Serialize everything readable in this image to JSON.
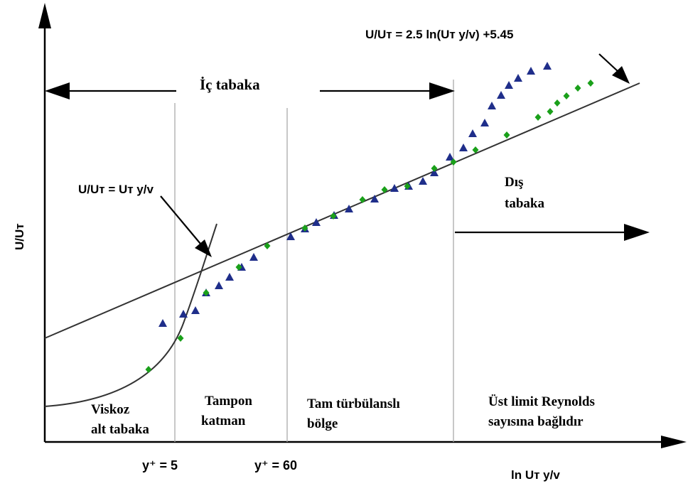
{
  "chart_data": {
    "type": "scatter",
    "title": "",
    "xlabel": "ln Uт y/v",
    "ylabel": "U/Uт",
    "grid": false,
    "legend": "none",
    "ticks": {
      "y_plus_5": "y⁺ = 5",
      "y_plus_60": "y⁺ = 60"
    },
    "equations": {
      "log_law": "U/Uт = 2.5 ln(Uт y/v) +5.45",
      "viscous": "U/Uт = Uт y/v"
    },
    "regions": {
      "inner_layer": "İç tabaka",
      "outer_layer_line1": "Dış",
      "outer_layer_line2": "tabaka",
      "viscous_line1": "Viskoz",
      "viscous_line2": "alt tabaka",
      "buffer_line1": "Tampon",
      "buffer_line2": "katman",
      "turbulent_line1": "Tam türbülanslı",
      "turbulent_line2": "bölge",
      "upper_line1": "Üst limit Reynolds",
      "upper_line2": "sayısına bağlıdır"
    },
    "series": [
      {
        "marker": "triangle",
        "color": "#1f2e8a",
        "points": [
          [
            229,
            455
          ],
          [
            258,
            442
          ],
          [
            275,
            437
          ],
          [
            290,
            412
          ],
          [
            308,
            402
          ],
          [
            323,
            390
          ],
          [
            340,
            376
          ],
          [
            357,
            362
          ],
          [
            409,
            333
          ],
          [
            429,
            322
          ],
          [
            445,
            313
          ],
          [
            470,
            303
          ],
          [
            491,
            294
          ],
          [
            527,
            280
          ],
          [
            555,
            265
          ],
          [
            575,
            262
          ],
          [
            595,
            255
          ],
          [
            611,
            243
          ],
          [
            633,
            221
          ],
          [
            652,
            208
          ],
          [
            665,
            188
          ],
          [
            682,
            173
          ],
          [
            692,
            149
          ],
          [
            705,
            134
          ],
          [
            716,
            120
          ],
          [
            729,
            110
          ],
          [
            747,
            100
          ],
          [
            770,
            93
          ]
        ]
      },
      {
        "marker": "diamond",
        "color": "#1aa01a",
        "points": [
          [
            209,
            520
          ],
          [
            254,
            476
          ],
          [
            290,
            412
          ],
          [
            336,
            376
          ],
          [
            376,
            346
          ],
          [
            429,
            321
          ],
          [
            469,
            304
          ],
          [
            510,
            281
          ],
          [
            541,
            267
          ],
          [
            573,
            262
          ],
          [
            611,
            237
          ],
          [
            638,
            228
          ],
          [
            669,
            211
          ],
          [
            713,
            190
          ],
          [
            757,
            165
          ],
          [
            774,
            157
          ],
          [
            784,
            145
          ],
          [
            797,
            135
          ],
          [
            813,
            124
          ],
          [
            831,
            117
          ]
        ]
      }
    ]
  }
}
